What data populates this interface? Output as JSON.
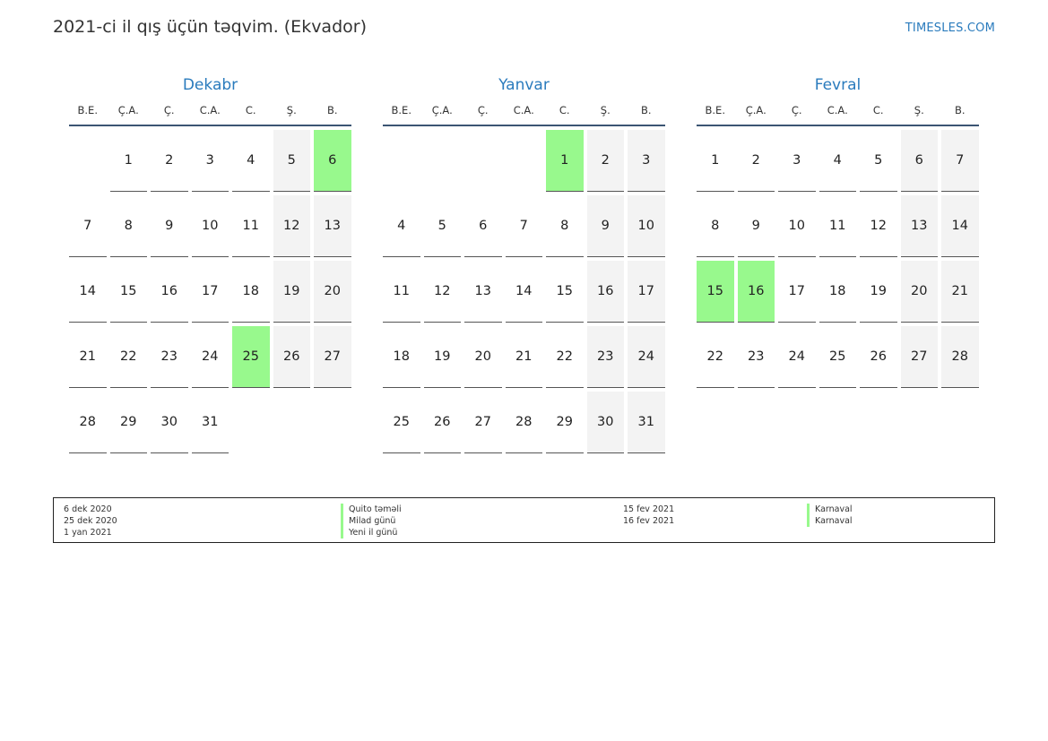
{
  "header": {
    "title": "2021-ci il qış üçün təqvim. (Ekvador)",
    "site": "TIMESLES.COM"
  },
  "weekday_labels": [
    "B.E.",
    "Ç.A.",
    "Ç.",
    "C.A.",
    "C.",
    "Ş.",
    "B."
  ],
  "months": [
    {
      "name": "Dekabr",
      "first_offset": 1,
      "days": 31,
      "holidays": [
        6,
        25
      ]
    },
    {
      "name": "Yanvar",
      "first_offset": 4,
      "days": 31,
      "holidays": [
        1
      ]
    },
    {
      "name": "Fevral",
      "first_offset": 0,
      "days": 28,
      "holidays": [
        15,
        16
      ]
    }
  ],
  "legend": {
    "left_dates": [
      "6 dek 2020",
      "25 dek 2020",
      "1 yan 2021"
    ],
    "left_names": [
      "Quito təməli",
      "Milad günü",
      "Yeni il günü"
    ],
    "right_dates": [
      "15 fev 2021",
      "16 fev 2021"
    ],
    "right_names": [
      "Karnaval",
      "Karnaval"
    ]
  },
  "colors": {
    "holiday": "#98f98d",
    "weekend": "#f3f3f3",
    "accent": "#2a7bbd"
  }
}
